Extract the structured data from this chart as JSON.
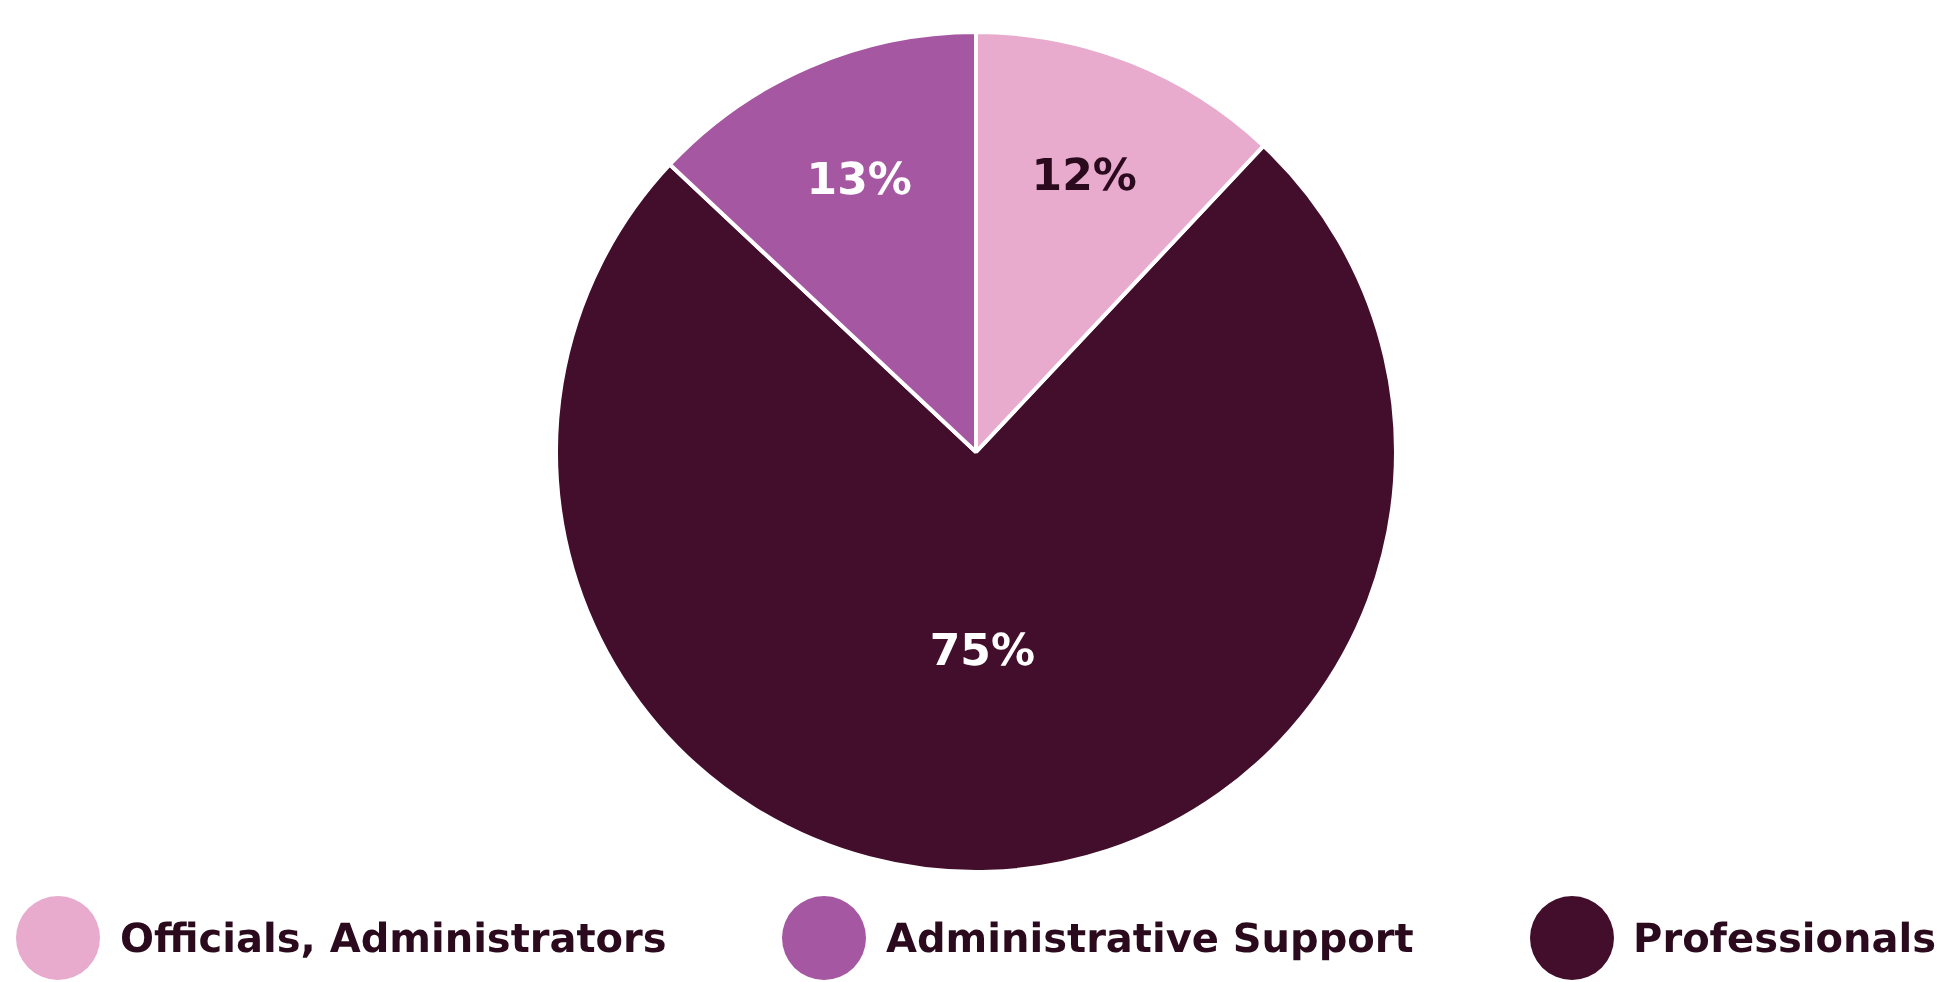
{
  "chart_data": {
    "type": "pie",
    "categories": [
      "Officials, Administrators",
      "Administrative Support",
      "Professionals"
    ],
    "values": [
      12,
      13,
      75
    ],
    "colors": [
      "#e8aacd",
      "#a557a1",
      "#420e2b"
    ],
    "value_labels": [
      "12%",
      "13%",
      "75%"
    ],
    "legend": "bottom"
  }
}
